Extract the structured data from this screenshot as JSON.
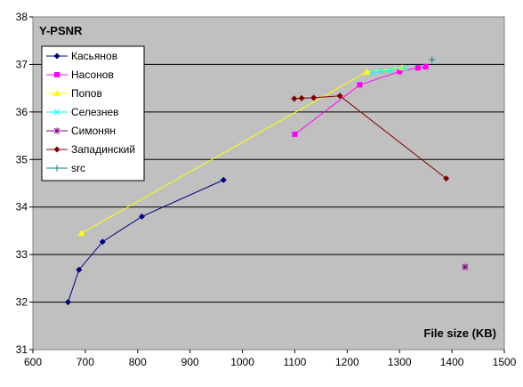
{
  "chart_data": {
    "type": "line",
    "title": "Y-PSNR",
    "xlabel": "File size (KB)",
    "ylabel": "",
    "xlim": [
      600,
      1500
    ],
    "ylim": [
      31,
      38
    ],
    "xticks": [
      600,
      700,
      800,
      900,
      1000,
      1100,
      1200,
      1300,
      1400,
      1500
    ],
    "yticks": [
      31,
      32,
      33,
      34,
      35,
      36,
      37,
      38
    ],
    "grid": "horizontal",
    "legend": "top-left",
    "background": "#c0c0c0",
    "series": [
      {
        "name": "Касьянов",
        "color": "#000080",
        "marker": "diamond",
        "points": [
          [
            667,
            32.0
          ],
          [
            688,
            32.68
          ],
          [
            733,
            33.27
          ],
          [
            808,
            33.8
          ],
          [
            964,
            34.57
          ]
        ]
      },
      {
        "name": "Насонов",
        "color": "#ff00ff",
        "marker": "square",
        "points": [
          [
            1100,
            35.53
          ],
          [
            1224,
            36.57
          ],
          [
            1300,
            36.85
          ],
          [
            1335,
            36.93
          ],
          [
            1350,
            36.95
          ]
        ]
      },
      {
        "name": "Попов",
        "color": "#ffff00",
        "marker": "triangle",
        "points": [
          [
            693,
            33.45
          ],
          [
            1237,
            36.84
          ],
          [
            1305,
            36.93
          ]
        ]
      },
      {
        "name": "Селезнев",
        "color": "#00ffff",
        "marker": "x",
        "points": [
          [
            1248,
            36.83
          ],
          [
            1264,
            36.86
          ],
          [
            1283,
            36.88
          ],
          [
            1310,
            36.93
          ]
        ]
      },
      {
        "name": "Симонян",
        "color": "#800080",
        "marker": "star",
        "points": [
          [
            1425,
            32.74
          ]
        ]
      },
      {
        "name": "Западинский",
        "color": "#800000",
        "marker": "diamond",
        "points": [
          [
            1099,
            36.28
          ],
          [
            1113,
            36.29
          ],
          [
            1136,
            36.3
          ],
          [
            1186,
            36.34
          ],
          [
            1389,
            34.6
          ]
        ]
      },
      {
        "name": "src",
        "color": "#008080",
        "marker": "plus",
        "points": [
          [
            1362,
            37.1
          ]
        ]
      }
    ]
  }
}
